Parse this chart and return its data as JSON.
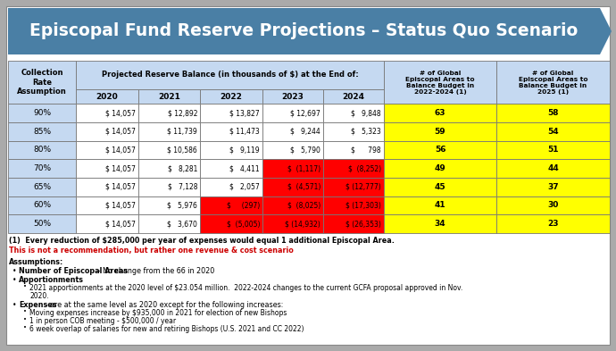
{
  "title": "Episcopal Fund Reserve Projections – Status Quo Scenario",
  "title_bg_color": "#4a7fa5",
  "title_text_color": "#ffffff",
  "outer_bg": "#aaaaaa",
  "inner_bg": "#ffffff",
  "header_bg": "#c5d9f1",
  "rows": [
    {
      "rate": "90%",
      "vals": [
        "$ 14,057",
        "$ 12,892",
        "$ 13,827",
        "$ 12,697",
        "$   9,848"
      ],
      "areas_22_24": "63",
      "areas_25": "58"
    },
    {
      "rate": "85%",
      "vals": [
        "$ 14,057",
        "$ 11,739",
        "$ 11,473",
        "$   9,244",
        "$   5,323"
      ],
      "areas_22_24": "59",
      "areas_25": "54"
    },
    {
      "rate": "80%",
      "vals": [
        "$ 14,057",
        "$ 10,586",
        "$   9,119",
        "$   5,790",
        "$      798"
      ],
      "areas_22_24": "56",
      "areas_25": "51"
    },
    {
      "rate": "70%",
      "vals": [
        "$ 14,057",
        "$   8,281",
        "$   4,411",
        "$  (1,117)",
        "$  (8,252)"
      ],
      "areas_22_24": "49",
      "areas_25": "44"
    },
    {
      "rate": "65%",
      "vals": [
        "$ 14,057",
        "$   7,128",
        "$   2,057",
        "$  (4,571)",
        "$ (12,777)"
      ],
      "areas_22_24": "45",
      "areas_25": "37"
    },
    {
      "rate": "60%",
      "vals": [
        "$ 14,057",
        "$   5,976",
        "$     (297)",
        "$  (8,025)",
        "$ (17,303)"
      ],
      "areas_22_24": "41",
      "areas_25": "30"
    },
    {
      "rate": "50%",
      "vals": [
        "$ 14,057",
        "$   3,670",
        "$  (5,005)",
        "$ (14,932)",
        "$ (26,353)"
      ],
      "areas_22_24": "34",
      "areas_25": "23"
    }
  ],
  "footnote1": "(1)  Every reduction of $285,000 per year of expenses would equal 1 additional Episcopal Area.",
  "footnote2": "This is not a recommendation, but rather one revenue & cost scenario",
  "assumptions_title": "Assumptions:",
  "bullet1_bold": "Number of Episcopal Areas",
  "bullet1_rest": " – No change from the 66 in 2020",
  "bullet2_bold": "Apportionments",
  "bullet3_text": "2021 apportionments at the 2020 level of $23.054 million.  2022-2024 changes to the current GCFA proposal approved in Nov.\n        2020.",
  "bullet4_bold": "Expenses",
  "bullet4_rest": " - are at the same level as 2020 except for the following increases:",
  "sub_bullet1": "Moving expenses increase by $935,000 in 2021 for election of new Bishops",
  "sub_bullet2": "1 in person COB meeting - $500,000 / year",
  "sub_bullet3": "6 week overlap of salaries for new and retiring Bishops (U.S. 2021 and CC 2022)",
  "neg_color": "#ff0000",
  "yellow_color": "#ffff00",
  "red_orange": "#ff4500"
}
